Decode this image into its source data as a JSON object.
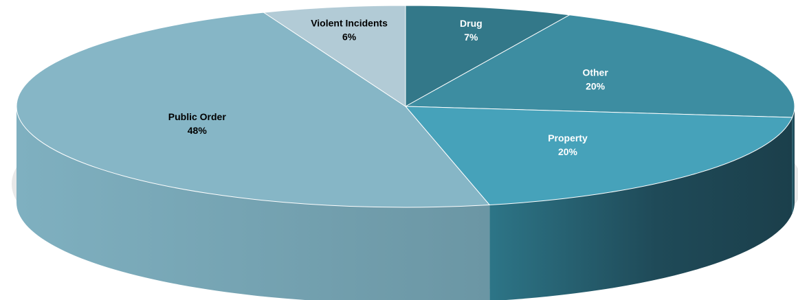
{
  "chart_data": {
    "type": "pie",
    "style": "3d",
    "title": "",
    "start_angle_deg": -90,
    "direction": "clockwise",
    "slices": [
      {
        "name": "Drug",
        "value": 7,
        "label": "7%",
        "color": "#337889",
        "side_color": "#23606f",
        "label_color": "#ffffff"
      },
      {
        "name": "Other",
        "value": 20,
        "label": "20%",
        "color": "#3d8da1",
        "side_color": "#1f4a58",
        "label_color": "#ffffff"
      },
      {
        "name": "Property",
        "value": 20,
        "label": "20%",
        "color": "#46a2ba",
        "side_color": "#2a6b7d",
        "label_color": "#ffffff"
      },
      {
        "name": "Public Order",
        "value": 48,
        "label": "48%",
        "color": "#86b6c6",
        "side_color": "#7aa9b9",
        "label_color": "#000000"
      },
      {
        "name": "Violent Incidents",
        "value": 6,
        "label": "6%",
        "color": "#b2cbd6",
        "side_color": "#9cb8c4",
        "label_color": "#000000"
      }
    ]
  }
}
